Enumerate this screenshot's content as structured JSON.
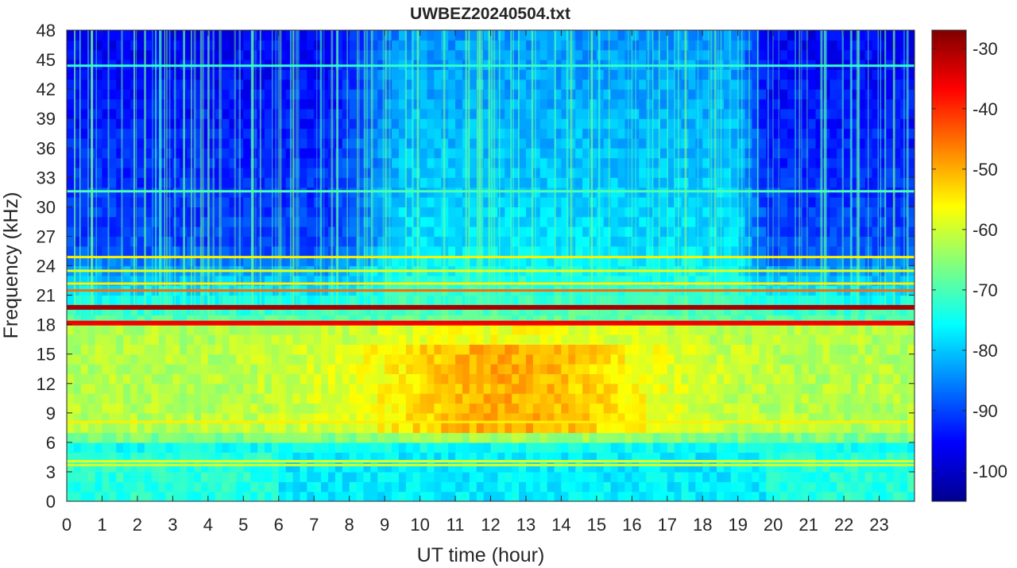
{
  "chart_data": {
    "type": "heatmap",
    "title": "UWBEZ20240504.txt",
    "xlabel": "UT time (hour)",
    "ylabel": "Frequency (kHz)",
    "xlim": [
      0,
      24
    ],
    "ylim": [
      0,
      48
    ],
    "x_ticks": [
      0,
      1,
      2,
      3,
      4,
      5,
      6,
      7,
      8,
      9,
      10,
      11,
      12,
      13,
      14,
      15,
      16,
      17,
      18,
      19,
      20,
      21,
      22,
      23
    ],
    "y_ticks": [
      0,
      3,
      6,
      9,
      12,
      15,
      18,
      21,
      24,
      27,
      30,
      33,
      36,
      39,
      42,
      45,
      48
    ],
    "colorbar": {
      "colormap": "jet",
      "clim": [
        -105,
        -27
      ],
      "ticks": [
        -100,
        -90,
        -80,
        -70,
        -60,
        -50,
        -40,
        -30
      ]
    },
    "approx_levels_db": {
      "background_high_freq_night": -90,
      "background_high_freq_day": -78,
      "band_6_to_18_khz_night": -62,
      "band_6_to_18_khz_day_peak": -50,
      "band_below_6_khz": -75
    },
    "narrowband_lines_khz": [
      {
        "freq": 19.8,
        "level": -30
      },
      {
        "freq": 18.2,
        "level": -36
      },
      {
        "freq": 21.4,
        "level": -45
      },
      {
        "freq": 22.1,
        "level": -55
      },
      {
        "freq": 23.4,
        "level": -58
      },
      {
        "freq": 24.8,
        "level": -55
      },
      {
        "freq": 31.5,
        "level": -70
      },
      {
        "freq": 44.3,
        "level": -72
      },
      {
        "freq": 4.0,
        "level": -58
      },
      {
        "freq": 3.6,
        "level": -60
      },
      {
        "freq": 8.0,
        "level": -55
      }
    ]
  }
}
